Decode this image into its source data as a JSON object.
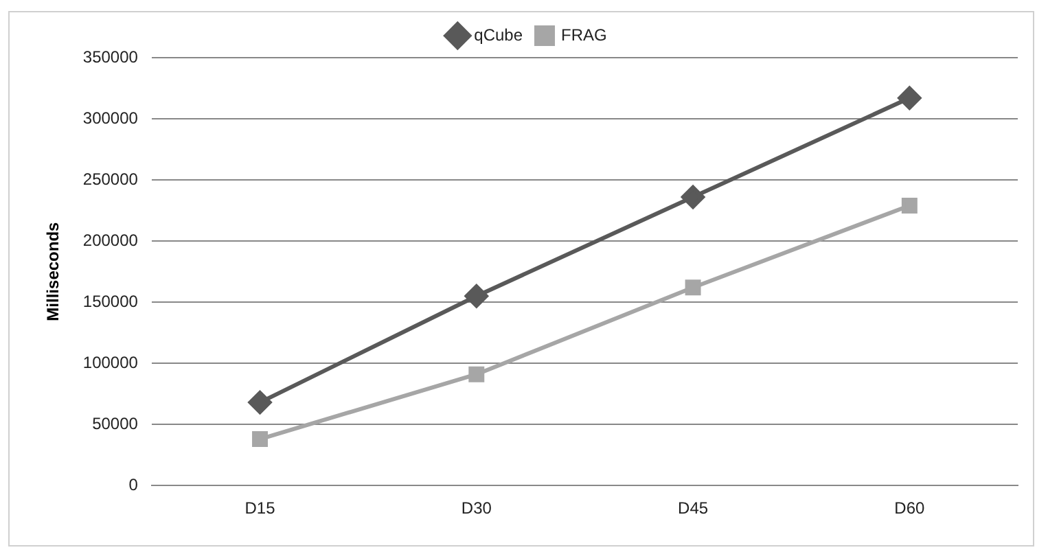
{
  "chart_data": {
    "type": "line",
    "ylabel": "Milliseconds",
    "categories": [
      "D15",
      "D30",
      "D45",
      "D60"
    ],
    "series": [
      {
        "name": "qCube",
        "color": "#595959",
        "marker": "diamond",
        "values": [
          68000,
          155000,
          236000,
          317000
        ]
      },
      {
        "name": "FRAG",
        "color": "#a6a6a6",
        "marker": "square",
        "values": [
          38000,
          91000,
          162000,
          229000
        ]
      }
    ],
    "ylim": [
      0,
      350000
    ],
    "yticks": [
      0,
      50000,
      100000,
      150000,
      200000,
      250000,
      300000,
      350000
    ],
    "grid": "y",
    "legend": "top",
    "line_style": "solid"
  }
}
